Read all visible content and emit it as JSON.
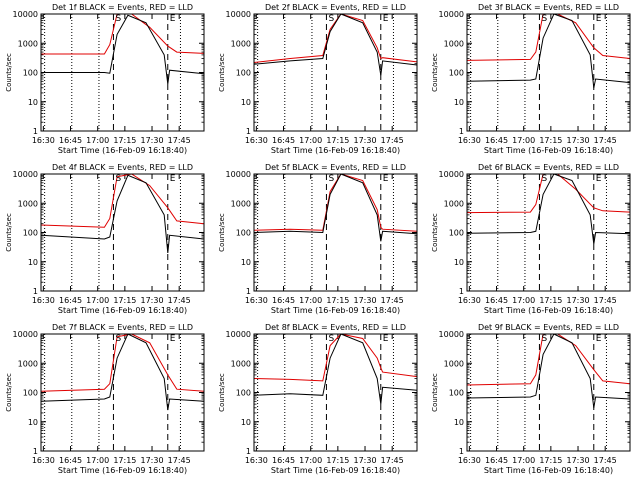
{
  "chart_data": {
    "type": "line",
    "layout": "3x3 grid",
    "yscale": "log",
    "ylim": [
      1,
      10000
    ],
    "ylabel": "Counts/sec",
    "xlabel": "Start Time (16-Feb-09 16:18:40)",
    "xlim_minutes": [
      10,
      100
    ],
    "series_colors": {
      "events": "#000000",
      "lld": "#e00000"
    },
    "common": {
      "dotted_lines_minutes": [
        12,
        27,
        42,
        87
      ],
      "dashed_lines_minutes": [
        50,
        80
      ],
      "event_markers": [
        {
          "text": "S",
          "minute": 50
        },
        {
          "text": "E",
          "minute": 80
        }
      ]
    },
    "panels": [
      {
        "title": "Det 1f BLACK = Events, RED = LLD",
        "xticks": [
          {
            "minute": 11.3,
            "label": "16:30"
          },
          {
            "minute": 26.3,
            "label": "16:45"
          },
          {
            "minute": 41.3,
            "label": "17:00"
          },
          {
            "minute": 56.3,
            "label": "17:15"
          },
          {
            "minute": 71.3,
            "label": "17:30"
          },
          {
            "minute": 86.3,
            "label": "17:45"
          }
        ],
        "events": {
          "x": [
            10,
            45,
            48,
            52,
            58,
            68,
            78,
            80,
            81,
            100
          ],
          "y": [
            100,
            100,
            95,
            2000,
            9000,
            5000,
            400,
            40,
            120,
            90
          ]
        },
        "lld": {
          "x": [
            10,
            45,
            48,
            52,
            60,
            70,
            80,
            85,
            100
          ],
          "y": [
            430,
            430,
            900,
            10000,
            10000,
            3500,
            800,
            500,
            450
          ]
        }
      },
      {
        "title": "Det 2f BLACK = Events, RED = LLD",
        "xticks": [
          {
            "minute": 11.3,
            "label": "16:30"
          },
          {
            "minute": 26.3,
            "label": "16:45"
          },
          {
            "minute": 41.3,
            "label": "17:00"
          },
          {
            "minute": 56.3,
            "label": "17:15"
          },
          {
            "minute": 71.3,
            "label": "17:30"
          },
          {
            "minute": 86.3,
            "label": "17:45"
          }
        ],
        "events": {
          "x": [
            10,
            30,
            48,
            52,
            58,
            70,
            78,
            80,
            81,
            100
          ],
          "y": [
            190,
            250,
            300,
            2500,
            10000,
            5000,
            500,
            80,
            250,
            180
          ]
        },
        "lld": {
          "x": [
            10,
            30,
            48,
            52,
            58,
            70,
            78,
            80,
            81,
            100
          ],
          "y": [
            220,
            300,
            380,
            3000,
            10000,
            6000,
            700,
            300,
            320,
            230
          ]
        }
      },
      {
        "title": "Det 3f BLACK = Events, RED = LLD",
        "xticks": [
          {
            "minute": 11.3,
            "label": "16:30"
          },
          {
            "minute": 26.3,
            "label": "16:45"
          },
          {
            "minute": 41.3,
            "label": "17:00"
          },
          {
            "minute": 56.3,
            "label": "17:15"
          },
          {
            "minute": 71.3,
            "label": "17:30"
          },
          {
            "minute": 86.3,
            "label": "17:45"
          }
        ],
        "events": {
          "x": [
            10,
            45,
            48,
            52,
            58,
            68,
            78,
            80,
            81,
            100
          ],
          "y": [
            50,
            55,
            60,
            1500,
            10000,
            6000,
            400,
            30,
            60,
            45
          ]
        },
        "lld": {
          "x": [
            10,
            45,
            48,
            52,
            60,
            70,
            80,
            85,
            100
          ],
          "y": [
            260,
            280,
            500,
            10000,
            10000,
            5000,
            700,
            380,
            300
          ]
        }
      },
      {
        "title": "Det 4f BLACK = Events, RED = LLD",
        "xticks": [
          {
            "minute": 11.3,
            "label": "16:30"
          },
          {
            "minute": 26.3,
            "label": "16:45"
          },
          {
            "minute": 41.3,
            "label": "17:00"
          },
          {
            "minute": 56.3,
            "label": "17:15"
          },
          {
            "minute": 71.3,
            "label": "17:30"
          },
          {
            "minute": 86.3,
            "label": "17:45"
          }
        ],
        "events": {
          "x": [
            10,
            45,
            48,
            52,
            58,
            68,
            78,
            80,
            81,
            100
          ],
          "y": [
            80,
            60,
            70,
            1200,
            9000,
            5000,
            400,
            20,
            80,
            60
          ]
        },
        "lld": {
          "x": [
            10,
            45,
            48,
            52,
            60,
            70,
            80,
            85,
            100
          ],
          "y": [
            180,
            150,
            300,
            8000,
            10000,
            4000,
            700,
            250,
            200
          ]
        }
      },
      {
        "title": "Det 5f BLACK = Events, RED = LLD",
        "xticks": [
          {
            "minute": 11.3,
            "label": "16:30"
          },
          {
            "minute": 26.3,
            "label": "16:45"
          },
          {
            "minute": 41.3,
            "label": "17:00"
          },
          {
            "minute": 56.3,
            "label": "17:15"
          },
          {
            "minute": 71.3,
            "label": "17:30"
          },
          {
            "minute": 86.3,
            "label": "17:45"
          }
        ],
        "events": {
          "x": [
            10,
            30,
            48,
            52,
            58,
            70,
            78,
            80,
            81,
            100
          ],
          "y": [
            100,
            110,
            100,
            2000,
            10000,
            5000,
            400,
            50,
            110,
            90
          ]
        },
        "lld": {
          "x": [
            10,
            30,
            48,
            52,
            58,
            70,
            78,
            80,
            81,
            100
          ],
          "y": [
            120,
            130,
            120,
            2500,
            10000,
            6000,
            600,
            150,
            130,
            110
          ]
        }
      },
      {
        "title": "Det 6f BLACK = Events, RED = LLD",
        "xticks": [
          {
            "minute": 11.3,
            "label": "16:30"
          },
          {
            "minute": 26.3,
            "label": "16:45"
          },
          {
            "minute": 41.3,
            "label": "17:00"
          },
          {
            "minute": 56.3,
            "label": "17:15"
          },
          {
            "minute": 71.3,
            "label": "17:30"
          },
          {
            "minute": 86.3,
            "label": "17:45"
          }
        ],
        "events": {
          "x": [
            10,
            45,
            48,
            52,
            58,
            68,
            78,
            80,
            81,
            100
          ],
          "y": [
            95,
            100,
            110,
            2000,
            10000,
            6000,
            400,
            40,
            100,
            90
          ]
        },
        "lld": {
          "x": [
            10,
            45,
            48,
            52,
            60,
            70,
            80,
            85,
            100
          ],
          "y": [
            480,
            500,
            900,
            10000,
            10000,
            3000,
            700,
            550,
            500
          ]
        }
      },
      {
        "title": "Det 7f BLACK = Events, RED = LLD",
        "xticks": [
          {
            "minute": 11.3,
            "label": "16:30"
          },
          {
            "minute": 26.3,
            "label": "16:45"
          },
          {
            "minute": 41.3,
            "label": "17:00"
          },
          {
            "minute": 56.3,
            "label": "17:15"
          },
          {
            "minute": 71.3,
            "label": "17:30"
          },
          {
            "minute": 86.3,
            "label": "17:45"
          }
        ],
        "events": {
          "x": [
            10,
            45,
            48,
            52,
            58,
            68,
            78,
            80,
            81,
            100
          ],
          "y": [
            50,
            60,
            70,
            1500,
            10000,
            5000,
            300,
            25,
            60,
            50
          ]
        },
        "lld": {
          "x": [
            10,
            45,
            48,
            52,
            60,
            70,
            80,
            85,
            100
          ],
          "y": [
            110,
            130,
            200,
            8000,
            10000,
            5000,
            400,
            130,
            110
          ]
        }
      },
      {
        "title": "Det 8f BLACK = Events, RED = LLD",
        "xticks": [
          {
            "minute": 11.3,
            "label": "16:30"
          },
          {
            "minute": 26.3,
            "label": "16:45"
          },
          {
            "minute": 41.3,
            "label": "17:00"
          },
          {
            "minute": 56.3,
            "label": "17:15"
          },
          {
            "minute": 71.3,
            "label": "17:30"
          },
          {
            "minute": 86.3,
            "label": "17:45"
          }
        ],
        "events": {
          "x": [
            10,
            30,
            48,
            52,
            58,
            70,
            78,
            80,
            81,
            100
          ],
          "y": [
            80,
            90,
            80,
            1500,
            10000,
            5000,
            300,
            40,
            150,
            120
          ]
        },
        "lld": {
          "x": [
            10,
            30,
            48,
            52,
            58,
            70,
            78,
            80,
            81,
            100
          ],
          "y": [
            300,
            280,
            250,
            4000,
            10000,
            7000,
            1500,
            700,
            500,
            350
          ]
        }
      },
      {
        "title": "Det 9f BLACK = Events, RED = LLD",
        "xticks": [
          {
            "minute": 11.3,
            "label": "16:30"
          },
          {
            "minute": 26.3,
            "label": "16:45"
          },
          {
            "minute": 41.3,
            "label": "17:00"
          },
          {
            "minute": 56.3,
            "label": "17:15"
          },
          {
            "minute": 71.3,
            "label": "17:30"
          },
          {
            "minute": 86.3,
            "label": "17:45"
          }
        ],
        "events": {
          "x": [
            10,
            45,
            48,
            52,
            58,
            68,
            78,
            80,
            81,
            100
          ],
          "y": [
            65,
            70,
            80,
            2000,
            10000,
            5000,
            300,
            30,
            70,
            60
          ]
        },
        "lld": {
          "x": [
            10,
            45,
            48,
            52,
            60,
            70,
            80,
            85,
            100
          ],
          "y": [
            180,
            200,
            400,
            10000,
            10000,
            4000,
            600,
            250,
            200
          ]
        }
      }
    ]
  }
}
